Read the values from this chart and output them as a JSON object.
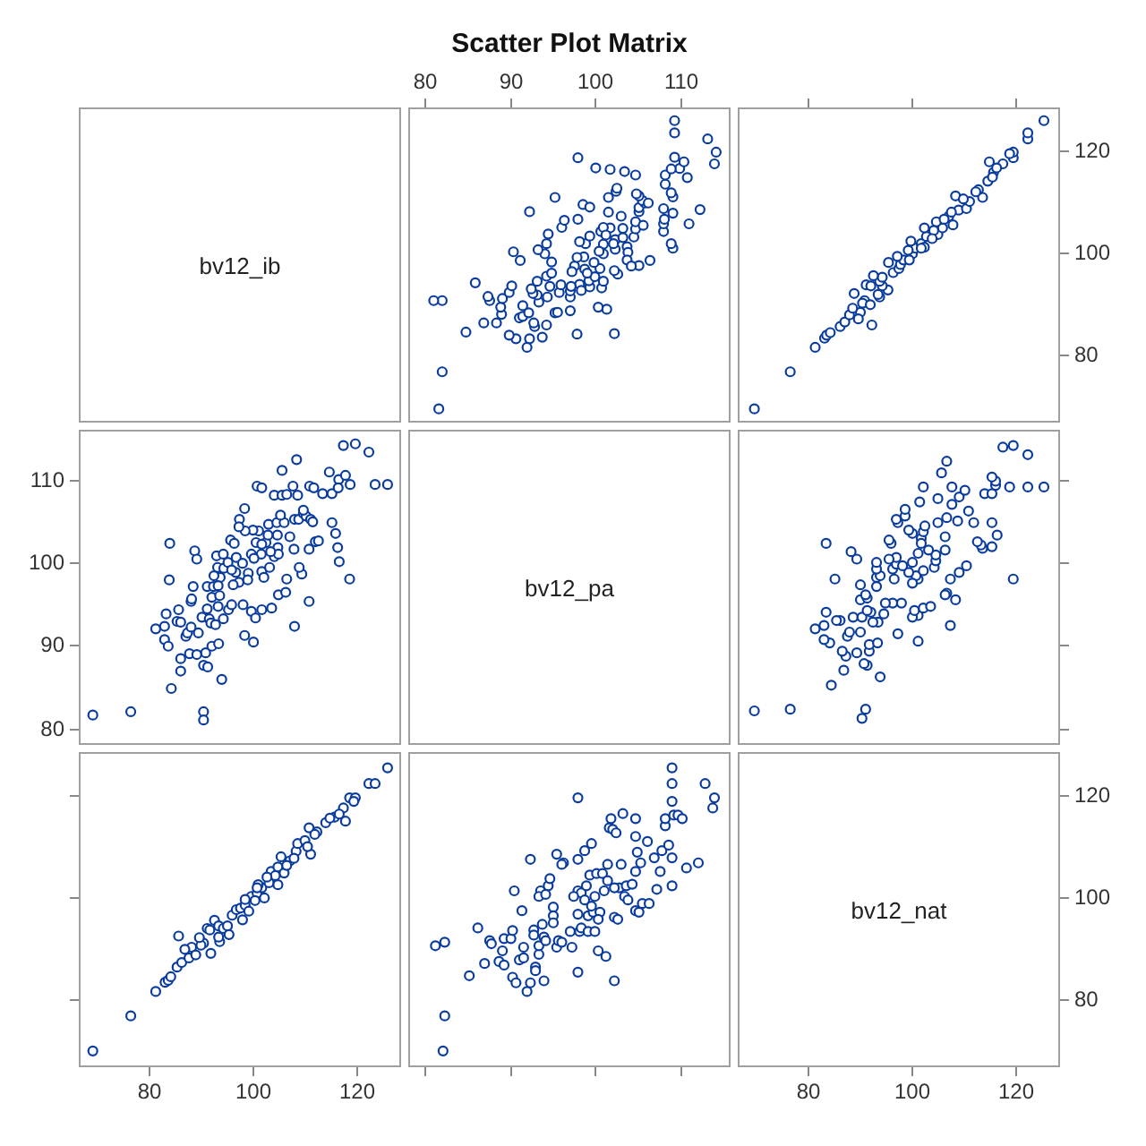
{
  "chart_data": [
    {
      "type": "other",
      "annotations": [
        "bv12_ib"
      ]
    },
    {
      "type": "scatter",
      "title": "Scatter Plot Matrix",
      "color": "#0a3c9e",
      "marker": "circle",
      "tick_labels": "x",
      "xlim": [
        78,
        116
      ],
      "xticks": [
        80,
        90,
        100,
        110
      ],
      "ylim": [
        66.5,
        128.5
      ],
      "yticks": [
        80,
        100,
        120
      ],
      "x": [
        81.6,
        82.0,
        82.0,
        81.0,
        84.8,
        85.9,
        86.9,
        87.6,
        87.4,
        88.4,
        89.0,
        88.9,
        89.1,
        89.9,
        90.2,
        90.7,
        89.9,
        92.0,
        92.3,
        93.8,
        92.9,
        92.8,
        91.1,
        91.5,
        91.5,
        92.2,
        93.4,
        93.2,
        92.7,
        92.5,
        93.2,
        94.7,
        94.4,
        94.3,
        94.9,
        94.9,
        94.1,
        93.3,
        94.3,
        94.5,
        91.2,
        90.4,
        96.1,
        96.4,
        92.3,
        95.3,
        94.3,
        95.3,
        95.6,
        97.1,
        97.1,
        95.8,
        96.0,
        97.1,
        98.2,
        97.2,
        97.9,
        102.3,
        101.4,
        100.4,
        100.8,
        101.0,
        99.4,
        99.3,
        100.0,
        102.7,
        102.3,
        100.6,
        99.9,
        98.8,
        97.6,
        98.7,
        97.9,
        98.9,
        98.2,
        99.4,
        100.7,
        101.8,
        101.0,
        102.4,
        103.8,
        103.9,
        103.8,
        105.2,
        104.3,
        106.5,
        109.2,
        109.0,
        108.1,
        108.1,
        111.1,
        112.4,
        104.6,
        104.8,
        104.8,
        105.7,
        105.2,
        105.2,
        105.9,
        105.6,
        105.2,
        104.9,
        103.1,
        101.6,
        98.6,
        99.4,
        98.0,
        101.6,
        102.5,
        102.6,
        104.8,
        103.5,
        101.8,
        100.1,
        98.0,
        108.2,
        108.1,
        109.2,
        109.2,
        109.0,
        108.3,
        108.3,
        110.9,
        110.0,
        109.0,
        110.5,
        109.4,
        114.1,
        114.3,
        113.3,
        109.4,
        109.4,
        106.3,
        102.4,
        102.2,
        103.3,
        103.3,
        101.0,
        101.3,
        101.0,
        100.5,
        97.3,
        98.4,
        99.1
      ],
      "values": [
        69.2,
        76.5,
        90.5,
        90.5,
        84.3,
        94.0,
        86.1,
        90.5,
        91.3,
        86.1,
        87.8,
        89.2,
        90.9,
        92.1,
        93.4,
        83.0,
        83.7,
        81.3,
        83.0,
        83.3,
        85.4,
        86.1,
        87.1,
        87.4,
        89.5,
        88.1,
        90.2,
        91.6,
        91.9,
        92.8,
        94.3,
        93.3,
        91.2,
        95.3,
        95.9,
        98.1,
        99.7,
        100.5,
        101.7,
        103.6,
        98.4,
        100.1,
        104.9,
        106.3,
        108.0,
        110.8,
        85.7,
        88.1,
        88.2,
        88.5,
        91.2,
        92.1,
        93.6,
        92.4,
        93.7,
        93.3,
        83.9,
        84.0,
        88.8,
        89.2,
        93.0,
        94.3,
        93.2,
        94.4,
        95.2,
        95.7,
        96.4,
        96.8,
        98.0,
        96.7,
        97.3,
        99.1,
        99.0,
        101.7,
        102.1,
        103.2,
        104.1,
        104.8,
        101.6,
        100.6,
        101.1,
        100.0,
        98.5,
        97.4,
        97.3,
        98.4,
        100.8,
        101.7,
        104.1,
        105.6,
        105.6,
        108.4,
        103.0,
        104.6,
        106.0,
        105.3,
        108.0,
        108.8,
        109.7,
        110.2,
        111.1,
        111.5,
        107.1,
        107.9,
        109.4,
        108.9,
        106.5,
        110.8,
        112.0,
        112.6,
        115.2,
        115.9,
        116.3,
        116.6,
        118.6,
        106.5,
        108.6,
        107.7,
        110.9,
        111.7,
        113.4,
        115.2,
        114.7,
        116.5,
        116.4,
        117.8,
        118.7,
        117.4,
        119.7,
        122.3,
        123.5,
        125.9,
        109.7,
        102.5,
        101.7,
        102.9,
        104.7,
        104.9,
        103.4,
        99.7,
        100.2,
        96.2,
        92.5,
        95.9
      ]
    },
    {
      "type": "scatter",
      "color": "#0a3c9e",
      "marker": "circle",
      "tick_labels": "y",
      "xlim": [
        66.5,
        128.5
      ],
      "xticks": [
        80,
        100,
        120
      ],
      "ylim": [
        66.5,
        128.5
      ],
      "yticks": [
        80,
        100,
        120
      ],
      "x": [
        69.7,
        76.6,
        81.4,
        83.2,
        83.6,
        84.3,
        92.3,
        86.2,
        87.1,
        88.0,
        90.1,
        88.6,
        90.9,
        93.8,
        88.9,
        95.4,
        94.3,
        91.2,
        93.8,
        94.3,
        96.4,
        97.5,
        97.8,
        98.4,
        100.1,
        100.7,
        101.8,
        102.8,
        105.0,
        105.9,
        107.9,
        104.7,
        107.1,
        109.0,
        110.5,
        111.1,
        113.6,
        108.4,
        112.8,
        114.6,
        115.7,
        114.9,
        117.5,
        119.5,
        119.5,
        122.3,
        122.3,
        125.4,
        97.2,
        99.3,
        99.8,
        104.2,
        106.2,
        107.6,
        92.1,
        90.5,
        89.7,
        92.6,
        95.5,
        102.4,
        102.4,
        109.9,
        112.3,
        115.5,
        116.3,
        118.8,
        93.5,
        92.0,
        99.5,
        101.8,
        103.9
      ],
      "values": [
        69.2,
        76.5,
        81.3,
        83.1,
        83.7,
        84.2,
        85.7,
        85.4,
        86.3,
        87.7,
        88.2,
        89.0,
        90.5,
        91.2,
        91.9,
        92.6,
        93.4,
        93.6,
        94.3,
        95.1,
        96.0,
        96.8,
        97.6,
        98.5,
        99.7,
        100.8,
        101.7,
        103.1,
        103.5,
        104.8,
        105.4,
        106.0,
        107.1,
        108.3,
        108.6,
        110.0,
        110.8,
        111.1,
        112.3,
        114.0,
        115.7,
        117.8,
        117.4,
        118.6,
        119.7,
        122.3,
        123.5,
        125.9,
        99.2,
        100.4,
        102.2,
        104.3,
        106.5,
        107.9,
        93.4,
        90.0,
        86.9,
        95.4,
        98.0,
        101.0,
        104.8,
        110.5,
        111.9,
        114.8,
        116.6,
        119.4,
        91.7,
        89.7,
        98.5,
        100.8,
        102.7
      ]
    },
    {
      "type": "scatter",
      "color": "#0a3c9e",
      "marker": "circle",
      "tick_labels": "y",
      "xlim": [
        66.5,
        128.5
      ],
      "xticks": [
        80,
        100,
        120
      ],
      "ylim": [
        78,
        116
      ],
      "yticks": [
        80,
        90,
        100,
        110
      ],
      "x": [
        69.2,
        76.5,
        90.5,
        90.5,
        84.3,
        94.0,
        86.1,
        90.5,
        91.3,
        86.1,
        87.8,
        89.2,
        90.9,
        92.1,
        93.4,
        83.0,
        83.7,
        81.3,
        83.0,
        83.3,
        85.4,
        86.1,
        87.1,
        87.4,
        89.5,
        88.1,
        90.2,
        91.6,
        91.9,
        92.8,
        94.3,
        93.3,
        91.2,
        95.3,
        95.9,
        98.1,
        99.7,
        100.5,
        101.7,
        103.6,
        98.4,
        100.1,
        104.9,
        106.3,
        108.0,
        110.8,
        85.7,
        88.1,
        88.2,
        88.5,
        91.2,
        92.1,
        93.6,
        92.4,
        93.7,
        93.3,
        83.9,
        84.0,
        88.8,
        89.2,
        93.0,
        94.3,
        93.2,
        94.4,
        95.2,
        95.7,
        96.4,
        96.8,
        98.0,
        96.7,
        97.3,
        99.1,
        99.0,
        101.7,
        102.1,
        103.2,
        104.1,
        104.8,
        101.6,
        100.6,
        101.1,
        100.0,
        98.5,
        97.4,
        97.3,
        98.4,
        100.8,
        101.7,
        104.1,
        105.6,
        105.6,
        108.4,
        103.0,
        104.6,
        106.0,
        105.3,
        108.0,
        108.8,
        109.7,
        110.2,
        111.1,
        111.5,
        107.1,
        107.9,
        109.4,
        108.9,
        106.5,
        110.8,
        112.0,
        112.6,
        115.2,
        115.9,
        116.3,
        116.6,
        118.6,
        106.5,
        108.6,
        107.7,
        110.9,
        111.7,
        113.4,
        115.2,
        114.7,
        116.5,
        116.4,
        117.8,
        118.7,
        117.4,
        119.7,
        122.3,
        123.5,
        125.9,
        109.7,
        102.5,
        101.7,
        102.9,
        104.7,
        104.9,
        103.4,
        99.7,
        100.2,
        96.2,
        92.5,
        95.9
      ],
      "values": [
        81.6,
        82.0,
        82.0,
        81.0,
        84.8,
        85.9,
        86.9,
        87.6,
        87.4,
        88.4,
        89.0,
        88.9,
        89.1,
        89.9,
        90.2,
        90.7,
        89.9,
        92.0,
        92.3,
        93.8,
        92.9,
        92.8,
        91.1,
        91.5,
        91.5,
        92.2,
        93.4,
        93.2,
        92.7,
        92.5,
        93.2,
        94.7,
        94.4,
        94.3,
        94.9,
        94.9,
        94.1,
        93.3,
        94.3,
        94.5,
        91.2,
        90.4,
        96.1,
        96.4,
        92.3,
        95.3,
        94.3,
        95.3,
        95.6,
        97.1,
        97.1,
        95.8,
        96.0,
        97.1,
        98.2,
        97.2,
        97.9,
        102.3,
        101.4,
        100.4,
        100.8,
        101.0,
        99.4,
        99.3,
        100.0,
        102.7,
        102.3,
        100.6,
        99.9,
        98.8,
        97.6,
        98.7,
        97.9,
        98.9,
        98.2,
        99.4,
        100.7,
        101.8,
        101.0,
        102.4,
        103.8,
        103.9,
        103.8,
        105.2,
        104.3,
        106.5,
        109.2,
        109.0,
        108.1,
        108.1,
        111.1,
        112.4,
        104.6,
        104.8,
        104.8,
        105.7,
        105.2,
        105.2,
        105.9,
        105.6,
        105.2,
        104.9,
        103.1,
        101.6,
        98.6,
        99.4,
        98.0,
        101.6,
        102.5,
        102.6,
        104.8,
        103.5,
        101.8,
        100.1,
        98.0,
        108.2,
        108.1,
        109.2,
        109.2,
        109.0,
        108.3,
        108.3,
        110.9,
        110.0,
        109.0,
        110.5,
        109.4,
        114.1,
        114.3,
        113.3,
        109.4,
        109.4,
        106.3,
        102.4,
        102.2,
        103.3,
        103.3,
        101.0,
        101.3,
        101.0,
        100.5,
        97.3,
        98.4,
        99.1
      ]
    },
    {
      "type": "other",
      "annotations": [
        "bv12_pa"
      ]
    },
    {
      "type": "scatter",
      "color": "#0a3c9e",
      "marker": "circle",
      "tick_labels": false,
      "xlim": [
        66.5,
        128.5
      ],
      "xticks": [
        80,
        100,
        120
      ],
      "ylim": [
        78,
        116
      ],
      "yticks": [
        80,
        90,
        100,
        110
      ],
      "x": [
        69.7,
        76.6,
        90.4,
        91.1,
        84.5,
        93.9,
        86.9,
        91.4,
        90.8,
        87.3,
        89.4,
        86.6,
        91.8,
        91.8,
        93.4,
        101.2,
        84.2,
        83.1,
        87.6,
        88.0,
        97.3,
        90.1,
        81.4,
        83.1,
        107.4,
        93.5,
        92.5,
        86.2,
        85.5,
        88.7,
        90.4,
        101.2,
        100.1,
        94.6,
        83.5,
        92.1,
        100.5,
        91.4,
        102.2,
        103.6,
        98.0,
        96.3,
        94.9,
        108.4,
        90.1,
        91.4,
        91.1,
        106.7,
        106.4,
        93.2,
        90.1,
        119.5,
        107.4,
        85.2,
        96.6,
        101.2,
        93.2,
        93.9,
        100.8,
        99.4,
        109.1,
        102.2,
        96.3,
        93.2,
        104.3,
        110.5,
        97.0,
        93.2,
        100.1,
        104.6,
        89.4,
        97.0,
        104.6,
        101.2,
        88.3,
        103.2,
        106.4,
        113.6,
        115.4,
        113.3,
        83.5,
        96.0,
        112.6,
        95.6,
        101.8,
        106.4,
        116.4,
        100.1,
        102.2,
        99.4,
        102.5,
        115.4,
        111.9,
        105.0,
        97.3,
        108.8,
        97.0,
        106.7,
        98.7,
        110.9,
        98.7,
        107.7,
        101.5,
        105.0,
        109.1,
        114.0,
        115.4,
        110.2,
        118.8,
        122.3,
        125.4,
        102.2,
        107.7,
        116.1,
        116.1,
        115.4,
        105.7,
        106.7,
        122.3,
        119.5,
        117.5,
        101.8,
        98.2,
        95.6,
        100.1
      ],
      "values": [
        82.1,
        82.3,
        81.2,
        82.3,
        85.2,
        86.2,
        87.0,
        87.6,
        87.8,
        88.7,
        89.1,
        89.3,
        89.3,
        90.1,
        90.3,
        90.5,
        90.3,
        90.7,
        91.1,
        91.6,
        91.4,
        91.6,
        92.0,
        92.4,
        92.4,
        92.8,
        92.8,
        93.0,
        93.0,
        93.4,
        93.4,
        93.6,
        93.4,
        93.8,
        94.0,
        94.0,
        94.2,
        94.2,
        94.5,
        94.7,
        95.1,
        95.1,
        95.1,
        95.5,
        95.5,
        95.7,
        96.1,
        96.3,
        96.1,
        97.1,
        97.3,
        98.0,
        98.0,
        98.0,
        98.0,
        98.0,
        98.2,
        98.4,
        98.4,
        98.8,
        98.8,
        99.0,
        99.2,
        99.2,
        99.4,
        99.6,
        99.8,
        100.0,
        100.0,
        100.2,
        100.4,
        100.6,
        100.9,
        101.1,
        101.3,
        101.5,
        101.5,
        101.7,
        101.9,
        102.1,
        102.3,
        102.3,
        102.5,
        102.7,
        102.9,
        103.1,
        103.3,
        103.5,
        103.7,
        103.9,
        104.4,
        104.8,
        104.8,
        104.8,
        104.8,
        105.0,
        105.2,
        105.4,
        105.6,
        106.2,
        106.4,
        107.0,
        107.3,
        107.7,
        107.9,
        108.3,
        108.3,
        108.7,
        109.1,
        109.1,
        109.1,
        109.1,
        109.1,
        109.3,
        109.8,
        110.3,
        110.8,
        112.2,
        113.0,
        114.1,
        113.9,
        102.3,
        99.6,
        100.4,
        97.5
      ]
    },
    {
      "type": "scatter",
      "color": "#0a3c9e",
      "marker": "circle",
      "tick_labels": "x",
      "xlim": [
        66.5,
        128.5
      ],
      "xticks": [
        80,
        100,
        120
      ],
      "ylim": [
        66.5,
        128.5
      ],
      "yticks": [
        80,
        100,
        120
      ],
      "x": [
        69.2,
        76.5,
        81.3,
        83.1,
        83.7,
        84.2,
        85.7,
        85.4,
        86.3,
        87.7,
        88.2,
        89.0,
        90.5,
        91.2,
        91.9,
        92.6,
        93.4,
        93.6,
        94.3,
        95.1,
        96.0,
        96.8,
        97.6,
        98.5,
        99.7,
        100.8,
        101.7,
        103.1,
        103.5,
        104.8,
        105.4,
        106.0,
        107.1,
        108.3,
        108.6,
        110.0,
        110.8,
        111.1,
        112.3,
        114.0,
        115.7,
        117.8,
        117.4,
        118.6,
        119.7,
        122.3,
        123.5,
        125.9,
        99.2,
        100.4,
        102.2,
        104.3,
        106.5,
        107.9,
        93.4,
        90.0,
        86.9,
        95.4,
        98.0,
        101.0,
        104.8,
        110.5,
        111.9,
        114.8,
        116.6,
        119.4,
        91.7,
        89.7,
        98.5,
        100.8,
        102.7
      ],
      "values": [
        69.7,
        76.6,
        81.4,
        83.2,
        83.6,
        84.3,
        92.3,
        86.2,
        87.1,
        88.0,
        90.1,
        88.6,
        90.9,
        93.8,
        88.9,
        95.4,
        94.3,
        91.2,
        93.8,
        94.3,
        96.4,
        97.5,
        97.8,
        98.4,
        100.1,
        100.7,
        101.8,
        102.8,
        105.0,
        105.9,
        107.9,
        104.7,
        107.1,
        109.0,
        110.5,
        111.1,
        113.6,
        108.4,
        112.8,
        114.6,
        115.7,
        114.9,
        117.5,
        119.5,
        119.5,
        122.3,
        122.3,
        125.4,
        97.2,
        99.3,
        99.8,
        104.2,
        106.2,
        107.6,
        92.1,
        90.5,
        89.7,
        92.6,
        95.5,
        102.4,
        102.4,
        109.9,
        112.3,
        115.5,
        116.3,
        118.8,
        93.5,
        92.0,
        99.5,
        101.8,
        103.9
      ]
    },
    {
      "type": "scatter",
      "color": "#0a3c9e",
      "marker": "circle",
      "tick_labels": false,
      "xlim": [
        78,
        116
      ],
      "xticks": [
        80,
        90,
        100,
        110
      ],
      "ylim": [
        66.5,
        128.5
      ],
      "yticks": [
        80,
        100,
        120
      ],
      "x": [
        82.1,
        82.3,
        81.2,
        82.3,
        85.2,
        86.2,
        87.0,
        87.6,
        87.8,
        88.7,
        89.1,
        89.3,
        89.3,
        90.1,
        90.3,
        90.5,
        90.3,
        90.7,
        91.1,
        91.6,
        91.4,
        91.6,
        92.0,
        92.4,
        92.4,
        92.8,
        92.8,
        93.0,
        93.0,
        93.4,
        93.4,
        93.6,
        93.4,
        93.8,
        94.0,
        94.0,
        94.2,
        94.2,
        94.5,
        94.7,
        95.1,
        95.1,
        95.1,
        95.5,
        95.5,
        95.7,
        96.1,
        96.3,
        96.1,
        97.1,
        97.3,
        98.0,
        98.0,
        98.0,
        98.0,
        98.0,
        98.2,
        98.4,
        98.4,
        98.8,
        98.8,
        99.0,
        99.2,
        99.2,
        99.4,
        99.6,
        99.8,
        100.0,
        100.0,
        100.2,
        100.4,
        100.6,
        100.9,
        101.1,
        101.3,
        101.5,
        101.5,
        101.7,
        101.9,
        102.1,
        102.3,
        102.3,
        102.5,
        102.7,
        102.9,
        103.1,
        103.3,
        103.5,
        103.7,
        103.9,
        104.4,
        104.8,
        104.8,
        104.8,
        104.8,
        105.0,
        105.2,
        105.4,
        105.6,
        106.2,
        106.4,
        107.0,
        107.3,
        107.7,
        107.9,
        108.3,
        108.3,
        108.7,
        109.1,
        109.1,
        109.1,
        109.1,
        109.1,
        109.3,
        109.8,
        110.3,
        110.8,
        112.2,
        113.0,
        114.1,
        113.9,
        102.3,
        99.6,
        100.4,
        97.5
      ],
      "values": [
        69.7,
        76.6,
        90.4,
        91.1,
        84.5,
        93.9,
        86.9,
        91.4,
        90.8,
        87.3,
        89.4,
        86.6,
        91.8,
        91.8,
        93.4,
        101.2,
        84.2,
        83.1,
        87.6,
        88.0,
        97.3,
        90.1,
        81.4,
        83.1,
        107.4,
        93.5,
        92.5,
        86.2,
        85.5,
        88.7,
        90.4,
        101.2,
        100.1,
        94.6,
        83.5,
        92.1,
        100.5,
        91.4,
        102.2,
        103.6,
        98.0,
        96.3,
        94.9,
        108.4,
        90.1,
        91.4,
        91.1,
        106.7,
        106.4,
        93.2,
        90.1,
        119.5,
        107.4,
        85.2,
        96.6,
        101.2,
        93.2,
        93.9,
        100.8,
        99.4,
        109.1,
        102.2,
        96.3,
        93.2,
        104.3,
        110.5,
        97.0,
        93.2,
        100.1,
        104.6,
        89.4,
        97.0,
        104.6,
        101.2,
        88.3,
        103.2,
        106.4,
        113.6,
        115.4,
        113.3,
        83.5,
        96.0,
        112.6,
        95.6,
        101.8,
        106.4,
        116.4,
        100.1,
        102.2,
        99.4,
        102.5,
        115.4,
        111.9,
        105.0,
        97.3,
        108.8,
        97.0,
        106.7,
        98.7,
        110.9,
        98.7,
        107.7,
        101.5,
        105.0,
        109.1,
        114.0,
        115.4,
        110.2,
        118.8,
        122.3,
        125.4,
        102.2,
        107.7,
        116.1,
        116.1,
        115.4,
        105.7,
        106.7,
        122.3,
        119.5,
        117.5,
        101.8,
        98.2,
        95.6,
        100.1
      ]
    },
    {
      "type": "scatter",
      "annotations": [
        "bv12_nat"
      ],
      "xlim": [
        66.5,
        128.5
      ],
      "xticks": [
        80,
        100,
        120
      ],
      "ylim": [
        66.5,
        128.5
      ],
      "yticks": [
        80,
        100,
        120
      ]
    }
  ]
}
